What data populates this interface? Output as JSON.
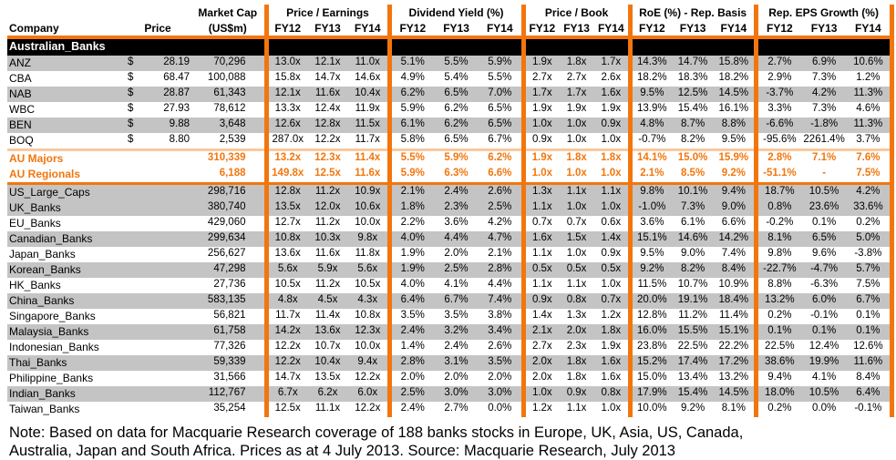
{
  "colors": {
    "accent_orange": "#F2760D",
    "accent_orange_light": "#FBC99D",
    "row_stripe_gray": "#C4C4C4",
    "section_bar": "#000000"
  },
  "table": {
    "header": {
      "company": "Company",
      "price": "Price",
      "market_cap_line1": "Market Cap",
      "market_cap_line2": "(US$m)",
      "groups": [
        {
          "label": "Price /  Earnings",
          "cols": [
            "FY12",
            "FY13",
            "FY14"
          ]
        },
        {
          "label": "Dividend Yield (%)",
          "cols": [
            "FY12",
            "FY13",
            "FY14"
          ]
        },
        {
          "label": "Price /  Book",
          "cols": [
            "FY12",
            "FY13",
            "FY14"
          ]
        },
        {
          "label": "RoE (%) - Rep. Basis",
          "cols": [
            "FY12",
            "FY13",
            "FY14"
          ]
        },
        {
          "label": "Rep. EPS Growth (%)",
          "cols": [
            "FY12",
            "FY13",
            "FY14"
          ]
        }
      ]
    },
    "section_label": "Australian_Banks",
    "rows": [
      {
        "name": "ANZ",
        "currency": "$",
        "price": "28.19",
        "mktcap": "70,296",
        "shade": true,
        "values": [
          "13.0x",
          "12.1x",
          "11.0x",
          "5.1%",
          "5.5%",
          "5.9%",
          "1.9x",
          "1.8x",
          "1.7x",
          "14.3%",
          "14.7%",
          "15.8%",
          "2.7%",
          "6.9%",
          "10.6%"
        ]
      },
      {
        "name": "CBA",
        "currency": "$",
        "price": "68.47",
        "mktcap": "100,088",
        "shade": false,
        "values": [
          "15.8x",
          "14.7x",
          "14.6x",
          "4.9%",
          "5.4%",
          "5.5%",
          "2.7x",
          "2.7x",
          "2.6x",
          "18.2%",
          "18.3%",
          "18.2%",
          "2.9%",
          "7.3%",
          "1.2%"
        ]
      },
      {
        "name": "NAB",
        "currency": "$",
        "price": "28.87",
        "mktcap": "61,343",
        "shade": true,
        "values": [
          "12.1x",
          "11.6x",
          "10.4x",
          "6.2%",
          "6.5%",
          "7.0%",
          "1.7x",
          "1.7x",
          "1.6x",
          "9.5%",
          "12.5%",
          "14.5%",
          "-3.7%",
          "4.2%",
          "11.3%"
        ]
      },
      {
        "name": "WBC",
        "currency": "$",
        "price": "27.93",
        "mktcap": "78,612",
        "shade": false,
        "values": [
          "13.3x",
          "12.4x",
          "11.9x",
          "5.9%",
          "6.2%",
          "6.5%",
          "1.9x",
          "1.9x",
          "1.9x",
          "13.9%",
          "15.4%",
          "16.1%",
          "3.3%",
          "7.3%",
          "4.6%"
        ]
      },
      {
        "name": "BEN",
        "currency": "$",
        "price": "9.88",
        "mktcap": "3,648",
        "shade": true,
        "values": [
          "12.6x",
          "12.8x",
          "11.5x",
          "6.1%",
          "6.2%",
          "6.5%",
          "1.0x",
          "1.0x",
          "0.9x",
          "4.8%",
          "8.7%",
          "8.8%",
          "-6.6%",
          "-1.8%",
          "11.3%"
        ]
      },
      {
        "name": "BOQ",
        "currency": "$",
        "price": "8.80",
        "mktcap": "2,539",
        "shade": false,
        "values": [
          "287.0x",
          "12.2x",
          "11.7x",
          "5.8%",
          "6.5%",
          "6.7%",
          "0.9x",
          "1.0x",
          "1.0x",
          "-0.7%",
          "8.2%",
          "9.5%",
          "-95.6%",
          "2261.4%",
          "3.7%"
        ]
      },
      {
        "name": "AU Majors",
        "currency": "",
        "price": "",
        "mktcap": "310,339",
        "shade": false,
        "highlight": true,
        "topline": true,
        "values": [
          "13.2x",
          "12.3x",
          "11.4x",
          "5.5%",
          "5.9%",
          "6.2%",
          "1.9x",
          "1.8x",
          "1.8x",
          "14.1%",
          "15.0%",
          "15.9%",
          "2.8%",
          "7.1%",
          "7.6%"
        ]
      },
      {
        "name": "AU Regionals",
        "currency": "",
        "price": "",
        "mktcap": "6,188",
        "shade": false,
        "highlight": true,
        "bottomline": true,
        "values": [
          "149.8x",
          "12.5x",
          "11.6x",
          "5.9%",
          "6.3%",
          "6.6%",
          "1.0x",
          "1.0x",
          "1.0x",
          "2.1%",
          "8.5%",
          "9.2%",
          "-51.1%",
          "-",
          "7.5%"
        ]
      },
      {
        "name": "US_Large_Caps",
        "currency": "",
        "price": "",
        "mktcap": "298,716",
        "shade": true,
        "values": [
          "12.8x",
          "11.2x",
          "10.9x",
          "2.1%",
          "2.4%",
          "2.6%",
          "1.3x",
          "1.1x",
          "1.1x",
          "9.8%",
          "10.1%",
          "9.4%",
          "18.7%",
          "10.5%",
          "4.2%"
        ]
      },
      {
        "name": "UK_Banks",
        "currency": "",
        "price": "",
        "mktcap": "380,740",
        "shade": true,
        "values": [
          "13.5x",
          "12.0x",
          "10.6x",
          "1.8%",
          "2.3%",
          "2.5%",
          "1.1x",
          "1.0x",
          "1.0x",
          "-1.0%",
          "7.3%",
          "9.0%",
          "0.8%",
          "23.6%",
          "33.6%"
        ]
      },
      {
        "name": "EU_Banks",
        "currency": "",
        "price": "",
        "mktcap": "429,060",
        "shade": false,
        "values": [
          "12.7x",
          "11.2x",
          "10.0x",
          "2.2%",
          "3.6%",
          "4.2%",
          "0.7x",
          "0.7x",
          "0.6x",
          "3.6%",
          "6.1%",
          "6.6%",
          "-0.2%",
          "0.1%",
          "0.2%"
        ]
      },
      {
        "name": "Canadian_Banks",
        "currency": "",
        "price": "",
        "mktcap": "299,634",
        "shade": true,
        "values": [
          "10.8x",
          "10.3x",
          "9.8x",
          "4.0%",
          "4.4%",
          "4.7%",
          "1.6x",
          "1.5x",
          "1.4x",
          "15.1%",
          "14.6%",
          "14.2%",
          "8.1%",
          "6.5%",
          "5.0%"
        ]
      },
      {
        "name": "Japan_Banks",
        "currency": "",
        "price": "",
        "mktcap": "256,627",
        "shade": false,
        "values": [
          "13.6x",
          "11.6x",
          "11.8x",
          "1.9%",
          "2.0%",
          "2.1%",
          "1.1x",
          "1.0x",
          "0.9x",
          "9.5%",
          "9.0%",
          "7.4%",
          "9.8%",
          "9.6%",
          "-3.8%"
        ]
      },
      {
        "name": "Korean_Banks",
        "currency": "",
        "price": "",
        "mktcap": "47,298",
        "shade": true,
        "values": [
          "5.6x",
          "5.9x",
          "5.6x",
          "1.9%",
          "2.5%",
          "2.8%",
          "0.5x",
          "0.5x",
          "0.5x",
          "9.2%",
          "8.2%",
          "8.4%",
          "-22.7%",
          "-4.7%",
          "5.7%"
        ]
      },
      {
        "name": "HK_Banks",
        "currency": "",
        "price": "",
        "mktcap": "27,736",
        "shade": false,
        "values": [
          "10.5x",
          "11.2x",
          "10.5x",
          "4.0%",
          "4.1%",
          "4.4%",
          "1.1x",
          "1.1x",
          "1.0x",
          "11.5%",
          "10.7%",
          "10.9%",
          "8.8%",
          "-6.3%",
          "7.5%"
        ]
      },
      {
        "name": "China_Banks",
        "currency": "",
        "price": "",
        "mktcap": "583,135",
        "shade": true,
        "values": [
          "4.8x",
          "4.5x",
          "4.3x",
          "6.4%",
          "6.7%",
          "7.4%",
          "0.9x",
          "0.8x",
          "0.7x",
          "20.0%",
          "19.1%",
          "18.4%",
          "13.2%",
          "6.0%",
          "6.7%"
        ]
      },
      {
        "name": "Singapore_Banks",
        "currency": "",
        "price": "",
        "mktcap": "56,821",
        "shade": false,
        "values": [
          "11.7x",
          "11.4x",
          "10.8x",
          "3.5%",
          "3.5%",
          "3.8%",
          "1.4x",
          "1.3x",
          "1.2x",
          "12.8%",
          "11.2%",
          "11.4%",
          "0.2%",
          "-0.1%",
          "0.1%"
        ]
      },
      {
        "name": "Malaysia_Banks",
        "currency": "",
        "price": "",
        "mktcap": "61,758",
        "shade": true,
        "values": [
          "14.2x",
          "13.6x",
          "12.3x",
          "2.4%",
          "3.2%",
          "3.4%",
          "2.1x",
          "2.0x",
          "1.8x",
          "16.0%",
          "15.5%",
          "15.1%",
          "0.1%",
          "0.1%",
          "0.1%"
        ]
      },
      {
        "name": "Indonesian_Banks",
        "currency": "",
        "price": "",
        "mktcap": "77,326",
        "shade": false,
        "values": [
          "12.2x",
          "10.7x",
          "10.0x",
          "1.4%",
          "2.4%",
          "2.6%",
          "2.7x",
          "2.3x",
          "1.9x",
          "23.8%",
          "22.5%",
          "22.2%",
          "22.5%",
          "12.4%",
          "12.6%"
        ]
      },
      {
        "name": "Thai_Banks",
        "currency": "",
        "price": "",
        "mktcap": "59,339",
        "shade": true,
        "values": [
          "12.2x",
          "10.4x",
          "9.4x",
          "2.8%",
          "3.1%",
          "3.5%",
          "2.0x",
          "1.8x",
          "1.6x",
          "15.2%",
          "17.4%",
          "17.2%",
          "38.6%",
          "19.9%",
          "11.6%"
        ]
      },
      {
        "name": "Philippine_Banks",
        "currency": "",
        "price": "",
        "mktcap": "31,566",
        "shade": false,
        "values": [
          "14.7x",
          "13.5x",
          "12.2x",
          "2.0%",
          "2.0%",
          "2.0%",
          "2.0x",
          "1.8x",
          "1.6x",
          "15.0%",
          "13.4%",
          "13.2%",
          "9.4%",
          "4.1%",
          "8.4%"
        ]
      },
      {
        "name": "Indian_Banks",
        "currency": "",
        "price": "",
        "mktcap": "112,767",
        "shade": true,
        "values": [
          "6.7x",
          "6.2x",
          "6.0x",
          "2.5%",
          "3.0%",
          "3.0%",
          "1.0x",
          "0.9x",
          "0.8x",
          "17.9%",
          "15.4%",
          "14.5%",
          "18.0%",
          "10.5%",
          "6.4%"
        ]
      },
      {
        "name": "Taiwan_Banks",
        "currency": "",
        "price": "",
        "mktcap": "35,254",
        "shade": false,
        "values": [
          "12.5x",
          "11.1x",
          "12.2x",
          "2.4%",
          "2.7%",
          "0.0%",
          "1.2x",
          "1.1x",
          "1.0x",
          "10.0%",
          "9.2%",
          "8.1%",
          "0.2%",
          "0.0%",
          "-0.1%"
        ]
      }
    ]
  },
  "note": {
    "line1": "Note: Based on data for Macquarie Research coverage of 188 banks stocks in Europe, UK, Asia, US, Canada,",
    "line2": "Australia, Japan and South Africa. Prices as at 4 July 2013. Source: Macquarie Research, July 2013"
  }
}
